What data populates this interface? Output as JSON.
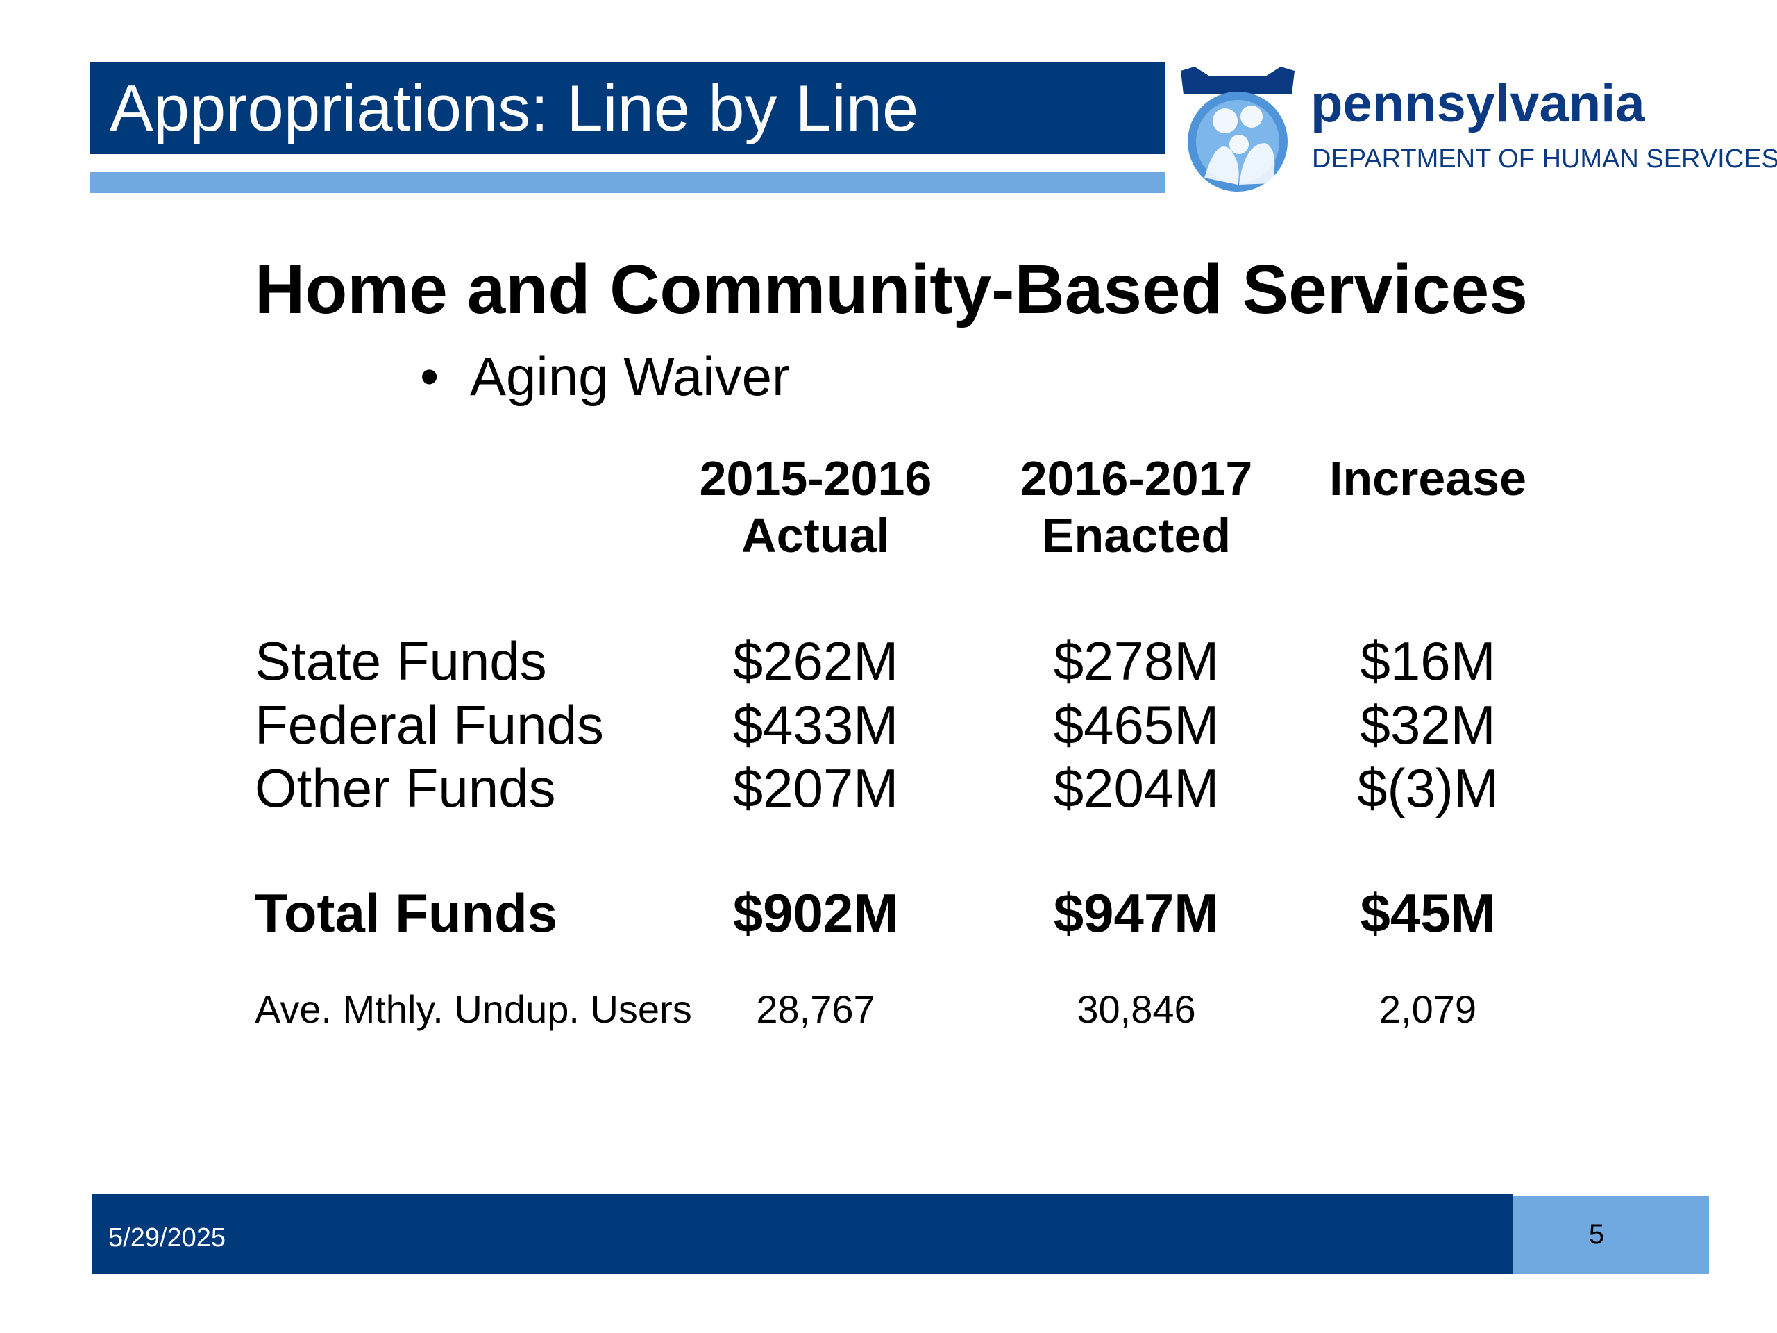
{
  "slide": {
    "title": "Appropriations: Line by Line",
    "heading": "Home and Community-Based Services",
    "bullet": "Aging Waiver",
    "bullet_marker": "•"
  },
  "logo": {
    "wordmark": "pennsylvania",
    "subtitle": "DEPARTMENT OF HUMAN SERVICES"
  },
  "table": {
    "columns": [
      {
        "line1": "2015-2016",
        "line2": "Actual"
      },
      {
        "line1": "2016-2017",
        "line2": "Enacted"
      },
      {
        "line1": "Increase",
        "line2": ""
      }
    ],
    "rows": [
      {
        "label": "State Funds",
        "values": [
          "$262M",
          "$278M",
          "$16M"
        ]
      },
      {
        "label": "Federal Funds",
        "values": [
          "$433M",
          "$465M",
          "$32M"
        ]
      },
      {
        "label": "Other Funds",
        "values": [
          "$207M",
          "$204M",
          "$(3)M"
        ]
      }
    ],
    "total": {
      "label": "Total Funds",
      "values": [
        "$902M",
        "$947M",
        "$45M"
      ]
    },
    "users": {
      "label": "Ave. Mthly. Undup. Users",
      "values": [
        "28,767",
        "30,846",
        "2,079"
      ]
    }
  },
  "footer": {
    "date": "5/29/2025",
    "page": "5"
  },
  "colors": {
    "navy": "#003a7a",
    "light_blue": "#6fa9e0",
    "logo_blue": "#0b3a83"
  }
}
